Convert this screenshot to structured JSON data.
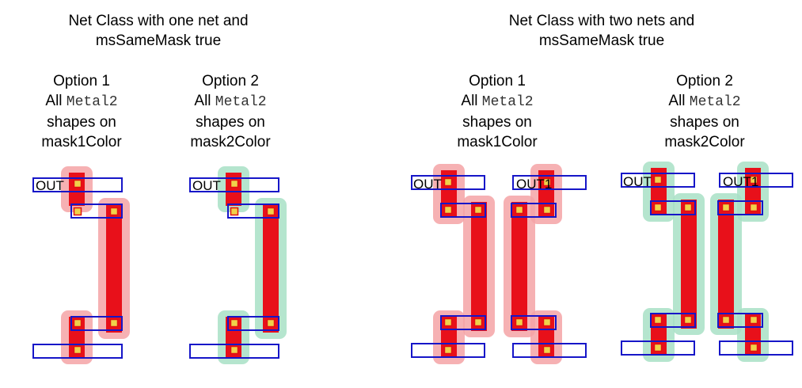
{
  "colors": {
    "metal": "#e8101a",
    "mask1_halo": "#f4a3a6",
    "mask2_halo": "#a8e0c6",
    "box_stroke": "#1616c8",
    "via_fill": "#f0d24a",
    "via_stroke": "#e01010"
  },
  "sections": [
    {
      "heading_line1": "Net Class with one net and",
      "heading_line2": "msSameMask true",
      "options": [
        {
          "title": "Option 1",
          "line_prefix": "All",
          "layer": "Metal2",
          "line3": "shapes on",
          "mask": "mask1Color",
          "net_labels": [
            "OUT"
          ]
        },
        {
          "title": "Option 2",
          "line_prefix": "All",
          "layer": "Metal2",
          "line3": "shapes on",
          "mask": "mask2Color",
          "net_labels": [
            "OUT"
          ]
        }
      ]
    },
    {
      "heading_line1": "Net Class with two nets and",
      "heading_line2": "msSameMask true",
      "options": [
        {
          "title": "Option 1",
          "line_prefix": "All",
          "layer": "Metal2",
          "line3": "shapes on",
          "mask": "mask1Color",
          "net_labels": [
            "OUT",
            "OUT1"
          ]
        },
        {
          "title": "Option 2",
          "line_prefix": "All",
          "layer": "Metal2",
          "line3": "shapes on",
          "mask": "mask2Color",
          "net_labels": [
            "OUT",
            "OUT1"
          ]
        }
      ]
    }
  ]
}
